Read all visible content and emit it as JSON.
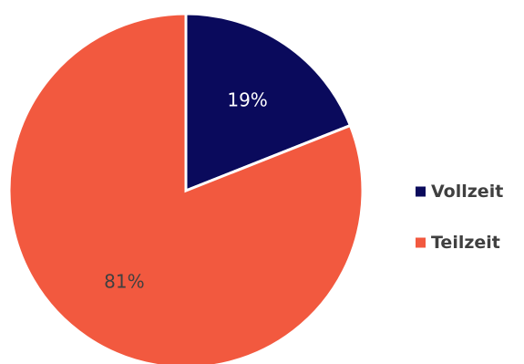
{
  "chart_data": {
    "type": "pie",
    "title": "",
    "categories": [
      "Vollzeit",
      "Teilzeit"
    ],
    "values": [
      19,
      81
    ],
    "data_labels": [
      "19%",
      "81%"
    ],
    "colors": [
      "#0a0a5c",
      "#f2593f"
    ],
    "label_colors": [
      "#ffffff",
      "#404040"
    ],
    "start_angle_deg": 0,
    "direction": "clockwise",
    "legend": {
      "placement": "right",
      "entries": [
        "Vollzeit",
        "Teilzeit"
      ]
    }
  }
}
